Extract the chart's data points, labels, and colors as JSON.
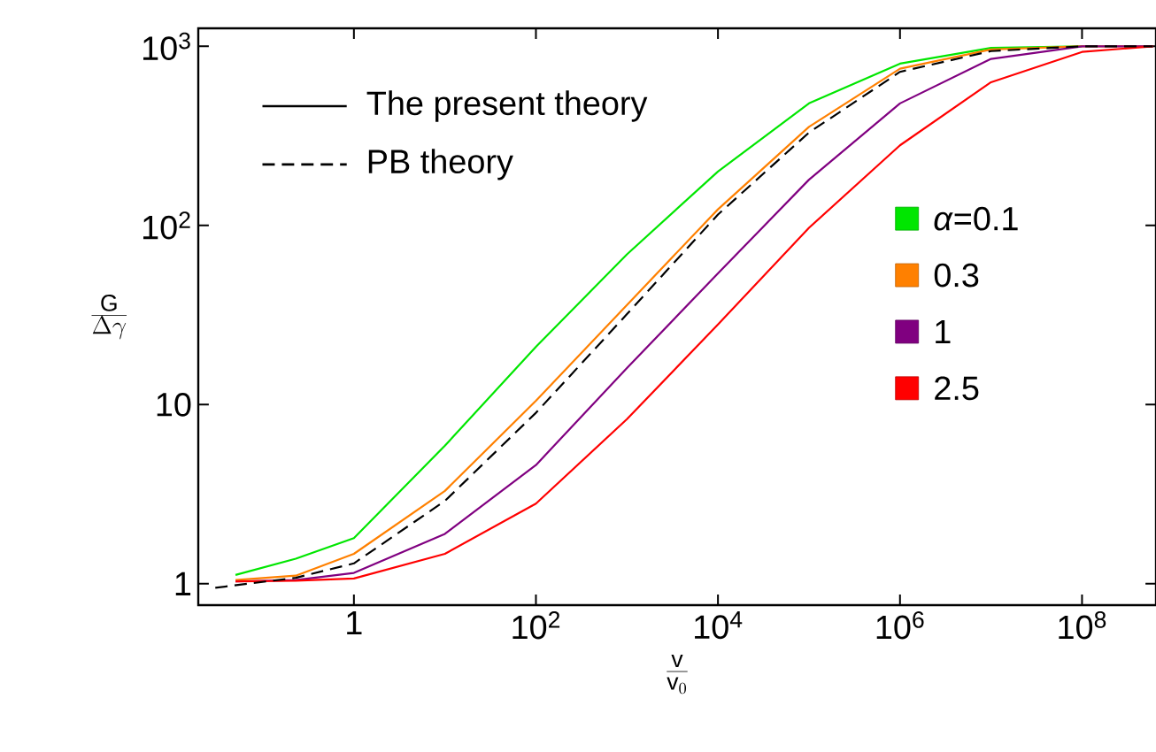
{
  "chart_data": {
    "type": "line",
    "xlabel": "\\frac{\\mathrm{v}}{\\mathrm{v}_{0}}",
    "ylabel": "\\frac{\\mathrm{G}}{\\Delta\\gamma}",
    "log": "xy",
    "legend": "right",
    "x": [
      0.05,
      0.23,
      1,
      10,
      100,
      1000,
      10000,
      100000,
      1000000,
      10000000,
      100000000,
      600000000
    ],
    "xlim": [
      0.0195,
      650000000
    ],
    "ylim": [
      0.76,
      1260
    ],
    "xticks": [
      1,
      {
        "value": 100,
        "label": "10$^{2}$"
      },
      {
        "value": 10000,
        "label": "10$^{4}$"
      },
      {
        "value": 1000000,
        "label": "10$^{6}$"
      },
      {
        "value": 100000000,
        "label": "10$^{8}$"
      }
    ],
    "yticks": [
      1,
      10,
      {
        "value": 100,
        "label": "10$^{2}$"
      },
      {
        "value": 1000,
        "label": "10$^{3}$"
      }
    ],
    "annotations": [
      "The present theory"
    ],
    "series": [
      {
        "name": "*α*=0.1",
        "color": "#00e600",
        "values": [
          1.12,
          1.38,
          1.8,
          5.9,
          21,
          69,
          200,
          480,
          800,
          980,
          1000,
          null
        ]
      },
      {
        "name": "0.3",
        "color": "#ff8000",
        "values": [
          1.05,
          1.11,
          1.47,
          3.3,
          10.5,
          36,
          123,
          355,
          750,
          960,
          1000,
          1000
        ]
      },
      {
        "name": "1",
        "color": "#800080",
        "values": [
          1.03,
          1.05,
          1.15,
          1.9,
          4.6,
          16,
          54,
          180,
          480,
          850,
          1000,
          1000
        ]
      },
      {
        "name": "2.5",
        "color": "#ff0000",
        "values": [
          1.03,
          1.04,
          1.07,
          1.47,
          2.8,
          8.3,
          28,
          97,
          280,
          630,
          930,
          1000
        ]
      },
      {
        "name": "PB theory",
        "color": "#000000",
        "line_style": "dashed",
        "x": [
          0.03,
          0.23,
          1,
          10,
          100,
          1000,
          10000,
          100000,
          1000000,
          10000000,
          100000000,
          600000000
        ],
        "values": [
          0.95,
          1.08,
          1.3,
          2.9,
          9,
          32,
          115,
          330,
          720,
          940,
          1000,
          1000
        ]
      }
    ]
  }
}
